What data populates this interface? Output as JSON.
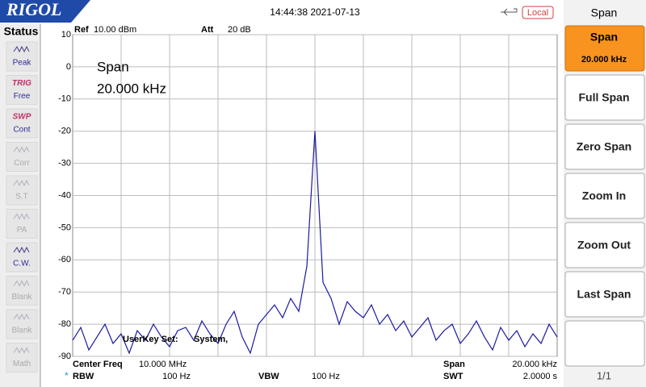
{
  "header": {
    "logo": "RIGOL",
    "datetime": "14:44:38 2021-07-13",
    "mode": "Local"
  },
  "status": {
    "title": "Status",
    "items": [
      {
        "label": "Peak"
      },
      {
        "tag": "TRIG",
        "label": "Free"
      },
      {
        "tag": "SWP",
        "label": "Cont"
      },
      {
        "label": "Corr"
      },
      {
        "label": "S.T"
      },
      {
        "label": "PA"
      },
      {
        "label": "C.W."
      },
      {
        "label": "Blank"
      },
      {
        "label": "Blank"
      },
      {
        "label": "Math"
      }
    ]
  },
  "plot_info": {
    "ref_label": "Ref",
    "ref_value": "10.00 dBm",
    "att_label": "Att",
    "att_value": "20 dB",
    "overlay_title": "Span",
    "overlay_value": "20.000 kHz",
    "userkey": "UserKey Set:",
    "userkey_value": "System,"
  },
  "chart_data": {
    "type": "line",
    "color": "#1a1aa0",
    "ylim": [
      -90,
      10
    ],
    "yticks": [
      10,
      0,
      -10,
      -20,
      -30,
      -40,
      -50,
      -60,
      -70,
      -80,
      -90
    ],
    "grid": true,
    "values": [
      -85,
      -81,
      -88,
      -84,
      -80,
      -86,
      -83,
      -89,
      -82,
      -85,
      -80,
      -84,
      -87,
      -82,
      -81,
      -85,
      -79,
      -83,
      -86,
      -80,
      -76,
      -84,
      -89,
      -80,
      -77,
      -74,
      -78,
      -72,
      -76,
      -62,
      -20,
      -67,
      -72,
      -80,
      -73,
      -76,
      -78,
      -74,
      -80,
      -77,
      -82,
      -79,
      -84,
      -81,
      -78,
      -85,
      -82,
      -80,
      -86,
      -83,
      -79,
      -84,
      -88,
      -81,
      -85,
      -82,
      -87,
      -83,
      -86,
      -80,
      -84
    ]
  },
  "footer": {
    "center_label": "Center Freq",
    "center_value": "10.000 MHz",
    "span_label": "Span",
    "span_value": "20.000 kHz",
    "rbw_mark": "*",
    "rbw_label": "RBW",
    "rbw_value": "100 Hz",
    "vbw_label": "VBW",
    "vbw_value": "100 Hz",
    "swt_label": "SWT",
    "swt_value": "2.0000 s"
  },
  "menu": {
    "title": "Span",
    "buttons": [
      {
        "label": "Span",
        "value": "20.000 kHz"
      },
      {
        "label": "Full Span"
      },
      {
        "label": "Zero Span"
      },
      {
        "label": "Zoom In"
      },
      {
        "label": "Zoom Out"
      },
      {
        "label": "Last Span"
      }
    ],
    "page": "1/1"
  }
}
